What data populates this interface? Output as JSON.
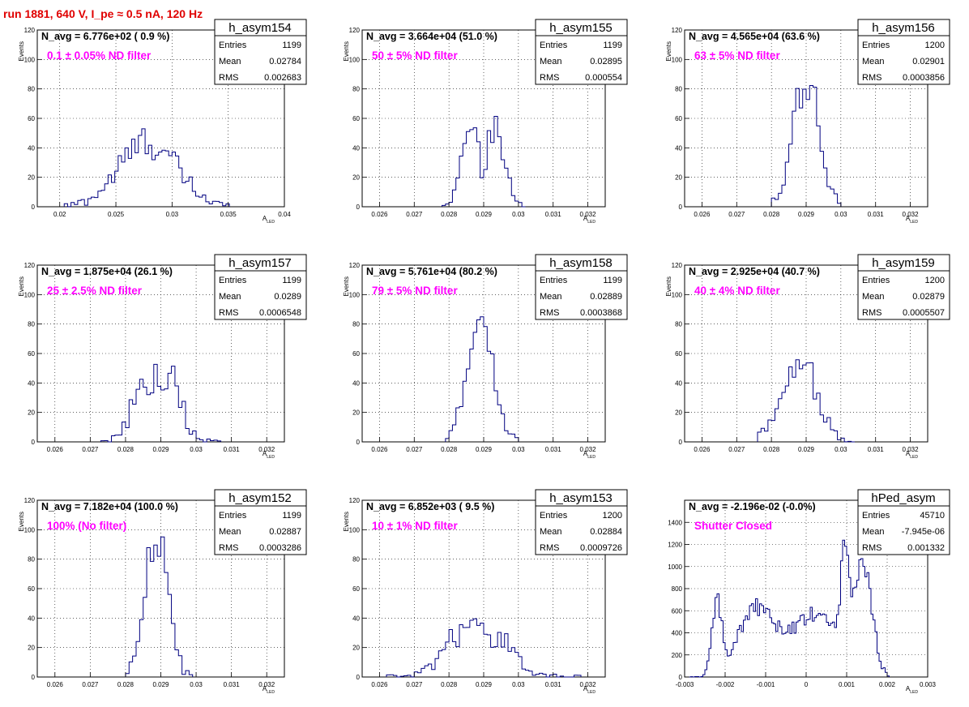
{
  "title": "run 1881,   640 V, I_pe ≈ 0.5 nA, 120 Hz",
  "chart_data": [
    {
      "type": "bar",
      "hist_name": "h_asym154",
      "n_avg": "N_avg = 6.776e+02 ( 0.9 %)",
      "filter": "0.1 ± 0.05% ND filter",
      "stats": {
        "entries": "1199",
        "mean": "0.02784",
        "rms": "0.002683"
      },
      "stat_labels": [
        "Entries",
        "Mean",
        "RMS"
      ],
      "xlabel": "A",
      "xlabel_sub": "LED",
      "ylabel": "Events",
      "xlim": [
        0.018,
        0.04
      ],
      "ylim": [
        0,
        120
      ],
      "xticks": [
        0.02,
        0.025,
        0.03,
        0.035,
        0.04
      ],
      "xtick_labels": [
        "0.02",
        "0.025",
        "0.03",
        "0.035",
        "0.04"
      ],
      "yticks": [
        0,
        20,
        40,
        60,
        80,
        100,
        120
      ],
      "ytick_labels": [
        "0",
        "20",
        "40",
        "60",
        "80",
        "100",
        "120"
      ],
      "dist": {
        "kind": "gauss",
        "mean": 0.02784,
        "sigma": 0.00255,
        "peak": 44,
        "start": 0.0204,
        "end": 0.0351,
        "bin": 0.0003,
        "noise": 6
      }
    },
    {
      "type": "bar",
      "hist_name": "h_asym155",
      "n_avg": "N_avg = 3.664e+04 (51.0 %)",
      "filter": "50 ± 5% ND filter",
      "stats": {
        "entries": "1199",
        "mean": "0.02895",
        "rms": "0.000554"
      },
      "stat_labels": [
        "Entries",
        "Mean",
        "RMS"
      ],
      "xlabel": "A",
      "xlabel_sub": "LED",
      "ylabel": "Events",
      "xlim": [
        0.0255,
        0.0325
      ],
      "ylim": [
        0,
        120
      ],
      "xticks": [
        0.026,
        0.027,
        0.028,
        0.029,
        0.03,
        0.031,
        0.032
      ],
      "xtick_labels": [
        "0.026",
        "0.027",
        "0.028",
        "0.029",
        "0.03",
        "0.031",
        "0.032"
      ],
      "yticks": [
        0,
        20,
        40,
        60,
        80,
        100,
        120
      ],
      "ytick_labels": [
        "0",
        "20",
        "40",
        "60",
        "80",
        "100",
        "120"
      ],
      "dist": {
        "kind": "bimodal",
        "mean": 0.02895,
        "m1": 0.02862,
        "m2": 0.02932,
        "sigma": 0.00028,
        "peak": 50,
        "start": 0.0278,
        "end": 0.0302,
        "bin": 0.0001,
        "noise": 6
      }
    },
    {
      "type": "bar",
      "hist_name": "h_asym156",
      "n_avg": "N_avg = 4.565e+04 (63.6 %)",
      "filter": "63 ± 5% ND filter",
      "stats": {
        "entries": "1200",
        "mean": "0.02901",
        "rms": "0.0003856"
      },
      "stat_labels": [
        "Entries",
        "Mean",
        "RMS"
      ],
      "xlabel": "A",
      "xlabel_sub": "LED",
      "ylabel": "Events",
      "xlim": [
        0.0255,
        0.0325
      ],
      "ylim": [
        0,
        120
      ],
      "xticks": [
        0.026,
        0.027,
        0.028,
        0.029,
        0.03,
        0.031,
        0.032
      ],
      "xtick_labels": [
        "0.026",
        "0.027",
        "0.028",
        "0.029",
        "0.03",
        "0.031",
        "0.032"
      ],
      "yticks": [
        0,
        20,
        40,
        60,
        80,
        100,
        120
      ],
      "ytick_labels": [
        "0",
        "20",
        "40",
        "60",
        "80",
        "100",
        "120"
      ],
      "dist": {
        "kind": "gauss",
        "mean": 0.02901,
        "sigma": 0.00037,
        "peak": 85,
        "start": 0.028,
        "end": 0.03,
        "bin": 0.0001,
        "noise": 8
      }
    },
    {
      "type": "bar",
      "hist_name": "h_asym157",
      "n_avg": "N_avg = 1.875e+04 (26.1 %)",
      "filter": "25 ± 2.5% ND filter",
      "stats": {
        "entries": "1199",
        "mean": "0.0289",
        "rms": "0.0006548"
      },
      "stat_labels": [
        "Entries",
        "Mean",
        "RMS"
      ],
      "xlabel": "A",
      "xlabel_sub": "LED",
      "ylabel": "Events",
      "xlim": [
        0.0255,
        0.0325
      ],
      "ylim": [
        0,
        120
      ],
      "xticks": [
        0.026,
        0.027,
        0.028,
        0.029,
        0.03,
        0.031,
        0.032
      ],
      "xtick_labels": [
        "0.026",
        "0.027",
        "0.028",
        "0.029",
        "0.03",
        "0.031",
        "0.032"
      ],
      "yticks": [
        0,
        20,
        40,
        60,
        80,
        100,
        120
      ],
      "ytick_labels": [
        "0",
        "20",
        "40",
        "60",
        "80",
        "100",
        "120"
      ],
      "dist": {
        "kind": "plateau",
        "mean": 0.0289,
        "sigma": 0.00065,
        "peak": 44,
        "start": 0.0273,
        "end": 0.0307,
        "bin": 0.0001,
        "noise": 6
      }
    },
    {
      "type": "bar",
      "hist_name": "h_asym158",
      "n_avg": "N_avg = 5.761e+04 (80.2 %)",
      "filter": "79 ± 5% ND filter",
      "stats": {
        "entries": "1199",
        "mean": "0.02889",
        "rms": "0.0003868"
      },
      "stat_labels": [
        "Entries",
        "Mean",
        "RMS"
      ],
      "xlabel": "A",
      "xlabel_sub": "LED",
      "ylabel": "Events",
      "xlim": [
        0.0255,
        0.0325
      ],
      "ylim": [
        0,
        120
      ],
      "xticks": [
        0.026,
        0.027,
        0.028,
        0.029,
        0.03,
        0.031,
        0.032
      ],
      "xtick_labels": [
        "0.026",
        "0.027",
        "0.028",
        "0.029",
        "0.03",
        "0.031",
        "0.032"
      ],
      "yticks": [
        0,
        20,
        40,
        60,
        80,
        100,
        120
      ],
      "ytick_labels": [
        "0",
        "20",
        "40",
        "60",
        "80",
        "100",
        "120"
      ],
      "dist": {
        "kind": "gauss",
        "mean": 0.02889,
        "sigma": 0.00038,
        "peak": 82,
        "start": 0.0279,
        "end": 0.03,
        "bin": 0.0001,
        "noise": 5
      }
    },
    {
      "type": "bar",
      "hist_name": "h_asym159",
      "n_avg": "N_avg = 2.925e+04 (40.7 %)",
      "filter": "40 ± 4% ND filter",
      "stats": {
        "entries": "1200",
        "mean": "0.02879",
        "rms": "0.0005507"
      },
      "stat_labels": [
        "Entries",
        "Mean",
        "RMS"
      ],
      "xlabel": "A",
      "xlabel_sub": "LED",
      "ylabel": "Events",
      "xlim": [
        0.0255,
        0.0325
      ],
      "ylim": [
        0,
        120
      ],
      "xticks": [
        0.026,
        0.027,
        0.028,
        0.029,
        0.03,
        0.031,
        0.032
      ],
      "xtick_labels": [
        "0.026",
        "0.027",
        "0.028",
        "0.029",
        "0.03",
        "0.031",
        "0.032"
      ],
      "yticks": [
        0,
        20,
        40,
        60,
        80,
        100,
        120
      ],
      "ytick_labels": [
        "0",
        "20",
        "40",
        "60",
        "80",
        "100",
        "120"
      ],
      "dist": {
        "kind": "gauss",
        "mean": 0.02879,
        "sigma": 0.00052,
        "peak": 57,
        "start": 0.0276,
        "end": 0.0304,
        "bin": 0.0001,
        "noise": 6
      }
    },
    {
      "type": "bar",
      "hist_name": "h_asym152",
      "n_avg": "N_avg = 7.182e+04 (100.0 %)",
      "filter": "100% (No filter)",
      "stats": {
        "entries": "1199",
        "mean": "0.02887",
        "rms": "0.0003286"
      },
      "stat_labels": [
        "Entries",
        "Mean",
        "RMS"
      ],
      "xlabel": "A",
      "xlabel_sub": "LED",
      "ylabel": "Events",
      "xlim": [
        0.0255,
        0.0325
      ],
      "ylim": [
        0,
        120
      ],
      "xticks": [
        0.026,
        0.027,
        0.028,
        0.029,
        0.03,
        0.031,
        0.032
      ],
      "xtick_labels": [
        "0.026",
        "0.027",
        "0.028",
        "0.029",
        "0.03",
        "0.031",
        "0.032"
      ],
      "yticks": [
        0,
        20,
        40,
        60,
        80,
        100,
        120
      ],
      "ytick_labels": [
        "0",
        "20",
        "40",
        "60",
        "80",
        "100",
        "120"
      ],
      "dist": {
        "kind": "gauss",
        "mean": 0.02887,
        "sigma": 0.00032,
        "peak": 100,
        "start": 0.028,
        "end": 0.0299,
        "bin": 0.0001,
        "noise": 8
      }
    },
    {
      "type": "bar",
      "hist_name": "h_asym153",
      "n_avg": "N_avg = 6.852e+03 ( 9.5 %)",
      "filter": "10 ± 1% ND filter",
      "stats": {
        "entries": "1200",
        "mean": "0.02884",
        "rms": "0.0009726"
      },
      "stat_labels": [
        "Entries",
        "Mean",
        "RMS"
      ],
      "xlabel": "A",
      "xlabel_sub": "LED",
      "ylabel": "Events",
      "xlim": [
        0.0255,
        0.0325
      ],
      "ylim": [
        0,
        120
      ],
      "xticks": [
        0.026,
        0.027,
        0.028,
        0.029,
        0.03,
        0.031,
        0.032
      ],
      "xtick_labels": [
        "0.026",
        "0.027",
        "0.028",
        "0.029",
        "0.03",
        "0.031",
        "0.032"
      ],
      "yticks": [
        0,
        20,
        40,
        60,
        80,
        100,
        120
      ],
      "ytick_labels": [
        "0",
        "20",
        "40",
        "60",
        "80",
        "100",
        "120"
      ],
      "dist": {
        "kind": "plateau",
        "mean": 0.02884,
        "sigma": 0.00097,
        "peak": 30,
        "start": 0.0262,
        "end": 0.0318,
        "bin": 0.0001,
        "noise": 5
      }
    },
    {
      "type": "bar",
      "hist_name": "hPed_asym",
      "n_avg": "N_avg = -2.196e-02 (-0.0%)",
      "filter": "Shutter Closed",
      "stats": {
        "entries": "45710",
        "mean": "-7.945e-06",
        "rms": "0.001332"
      },
      "stat_labels": [
        "Entries",
        "Mean",
        "RMS"
      ],
      "xlabel": "A",
      "xlabel_sub": "LED",
      "ylabel": "",
      "xlim": [
        -0.003,
        0.003
      ],
      "ylim": [
        0,
        1600
      ],
      "xticks": [
        -0.003,
        -0.002,
        -0.001,
        0,
        0.001,
        0.002,
        0.003
      ],
      "xtick_labels": [
        "-0.003",
        "-0.002",
        "-0.001",
        "0",
        "0.001",
        "0.002",
        "0.003"
      ],
      "yticks": [
        0,
        200,
        400,
        600,
        800,
        1000,
        1200,
        1400
      ],
      "ytick_labels": [
        "0",
        "200",
        "400",
        "600",
        "800",
        "1000",
        "1200",
        "1400"
      ],
      "dist": {
        "kind": "pedestal",
        "start": -0.0029,
        "end": 0.00205,
        "bin": 5e-05,
        "noise": 50
      }
    }
  ]
}
